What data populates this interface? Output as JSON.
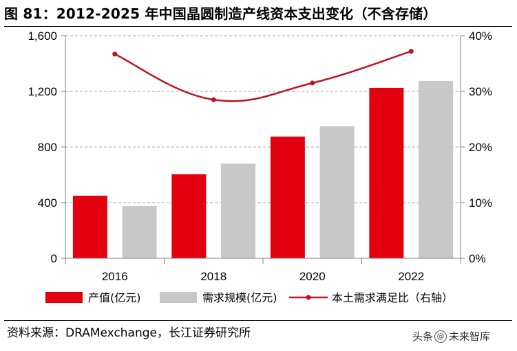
{
  "title": "图 81：2012-2025 年中国晶圆制造产线资本支出变化（不含存储）",
  "source": "资料来源：DRAMexchange，长江证券研究所",
  "watermark": {
    "prefix": "头条",
    "badge": "@",
    "name": "未来智库"
  },
  "chart_data": {
    "type": "bar",
    "categories": [
      "2016",
      "",
      "2018",
      "",
      "2020",
      "",
      "2022",
      ""
    ],
    "x_tick_labels": [
      "2016",
      "2018",
      "2020",
      "2022"
    ],
    "series": [
      {
        "name": "产值(亿元)",
        "kind": "bar",
        "axis": "left",
        "color": "#e3000f",
        "values": [
          450,
          null,
          605,
          null,
          875,
          null,
          1225,
          null
        ]
      },
      {
        "name": "需求规模(亿元)",
        "kind": "bar",
        "axis": "left",
        "color": "#c8c8c8",
        "values": [
          null,
          375,
          null,
          680,
          null,
          950,
          null,
          1275
        ]
      },
      {
        "name": "本土需求满足比（右轴）",
        "kind": "line",
        "axis": "right",
        "color": "#c0111e",
        "points": [
          {
            "x_index": 0.5,
            "y": 0.367
          },
          {
            "x_index": 2.5,
            "y": 0.285
          },
          {
            "x_index": 4.5,
            "y": 0.315
          },
          {
            "x_index": 6.5,
            "y": 0.372
          }
        ]
      }
    ],
    "y_left": {
      "min": 0,
      "max": 1600,
      "ticks": [
        0,
        400,
        800,
        1200,
        1600
      ],
      "tick_labels": [
        "0",
        "400",
        "800",
        "1,200",
        "1,600"
      ]
    },
    "y_right": {
      "min": 0,
      "max": 0.4,
      "ticks": [
        0,
        0.1,
        0.2,
        0.3,
        0.4
      ],
      "tick_labels": [
        "0%",
        "10%",
        "20%",
        "30%",
        "40%"
      ]
    },
    "grid": true,
    "legend_position": "bottom"
  }
}
